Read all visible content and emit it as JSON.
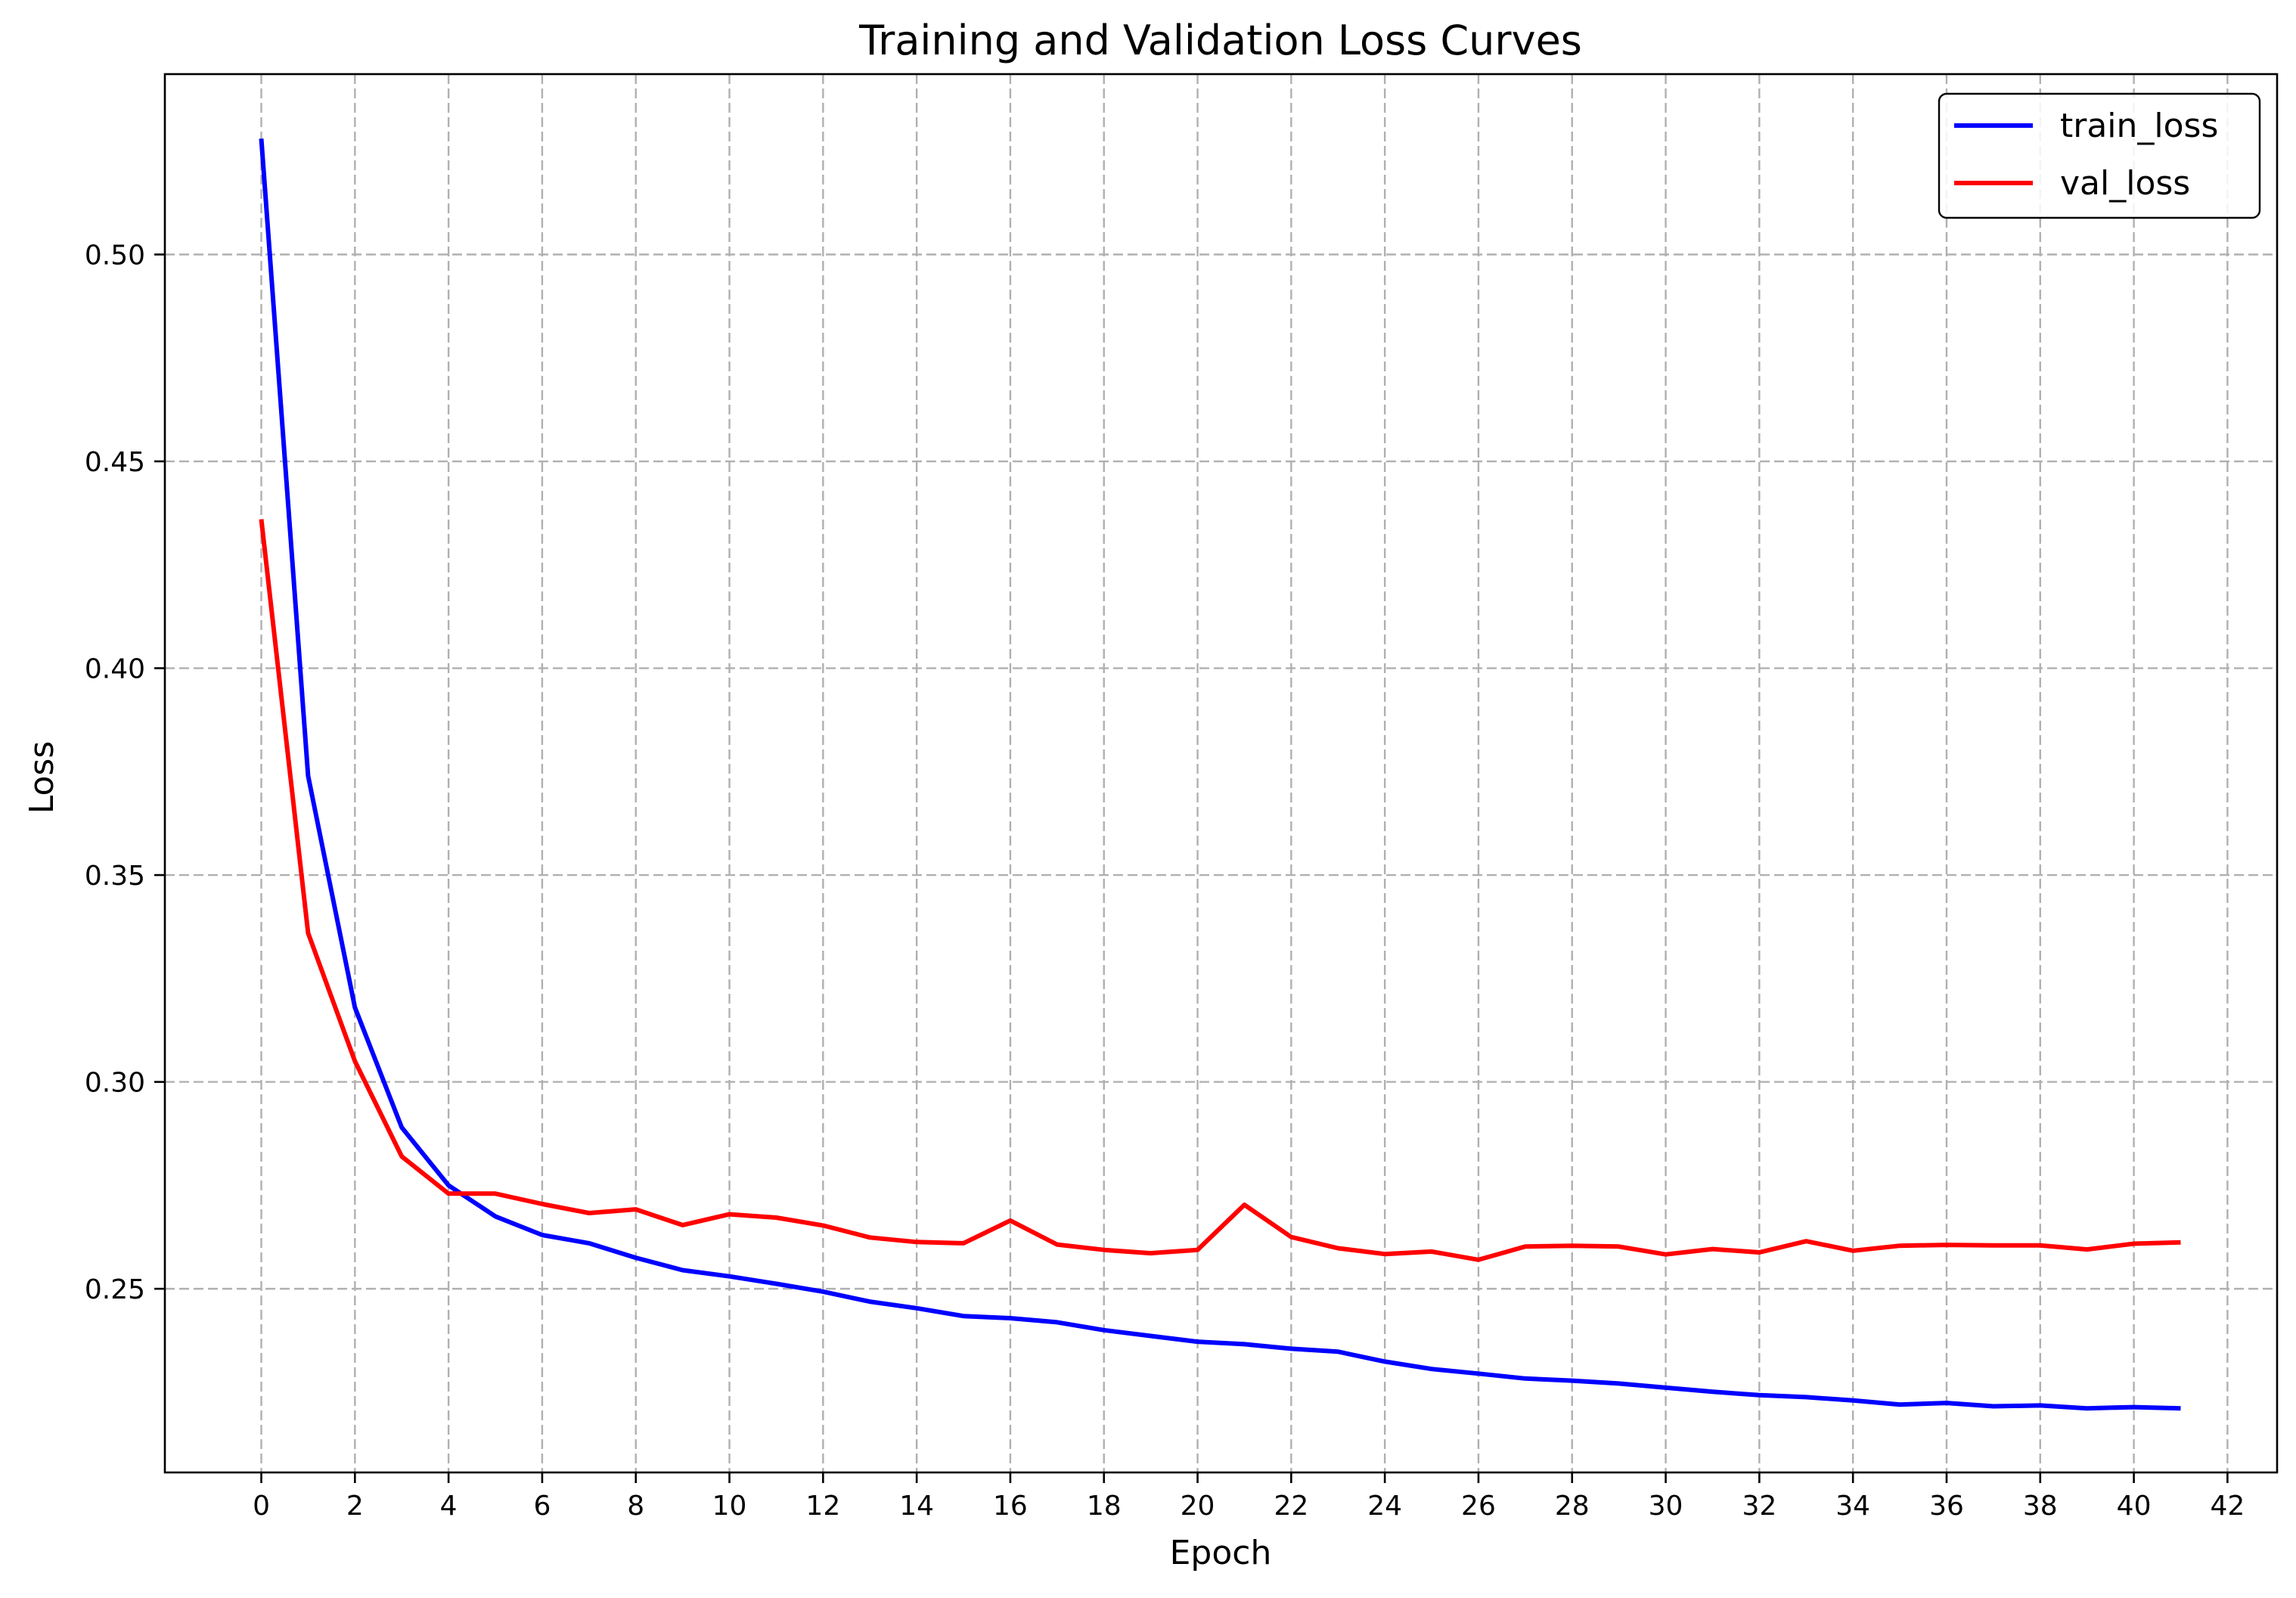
{
  "chart_data": {
    "type": "line",
    "title": "Training and Validation Loss Curves",
    "xlabel": "Epoch",
    "ylabel": "Loss",
    "xlim": [
      -2.06,
      43.06
    ],
    "ylim": [
      0.2056,
      0.5436
    ],
    "xticks": [
      0,
      2,
      4,
      6,
      8,
      10,
      12,
      14,
      16,
      18,
      20,
      22,
      24,
      26,
      28,
      30,
      32,
      34,
      36,
      38,
      40,
      42
    ],
    "yticks": [
      0.25,
      0.3,
      0.35,
      0.4,
      0.45,
      0.5
    ],
    "ytick_labels": [
      "0.25",
      "0.30",
      "0.35",
      "0.40",
      "0.45",
      "0.50"
    ],
    "grid": true,
    "legend_position": "top-right",
    "x": [
      0,
      1,
      2,
      3,
      4,
      5,
      6,
      7,
      8,
      9,
      10,
      11,
      12,
      13,
      14,
      15,
      16,
      17,
      18,
      19,
      20,
      21,
      22,
      23,
      24,
      25,
      26,
      27,
      28,
      29,
      30,
      31,
      32,
      33,
      34,
      35,
      36,
      37,
      38,
      39,
      40,
      41
    ],
    "series": [
      {
        "name": "train_loss",
        "color": "#0000ff",
        "values": [
          0.528,
          0.374,
          0.318,
          0.289,
          0.275,
          0.2675,
          0.263,
          0.261,
          0.2575,
          0.2545,
          0.253,
          0.2512,
          0.2493,
          0.2469,
          0.2453,
          0.2434,
          0.2429,
          0.2419,
          0.24,
          0.2386,
          0.2372,
          0.2366,
          0.2355,
          0.2348,
          0.2324,
          0.2306,
          0.2295,
          0.2283,
          0.2278,
          0.2271,
          0.2261,
          0.2251,
          0.2243,
          0.2238,
          0.223,
          0.222,
          0.2224,
          0.2216,
          0.2218,
          0.2211,
          0.2214,
          0.2211
        ]
      },
      {
        "name": "val_loss",
        "color": "#ff0000",
        "values": [
          0.436,
          0.336,
          0.305,
          0.282,
          0.273,
          0.273,
          0.2705,
          0.2683,
          0.2692,
          0.2654,
          0.268,
          0.2672,
          0.2653,
          0.2624,
          0.2613,
          0.261,
          0.2665,
          0.2607,
          0.2594,
          0.2586,
          0.2594,
          0.2703,
          0.2625,
          0.2598,
          0.2584,
          0.259,
          0.257,
          0.2602,
          0.2604,
          0.2602,
          0.2583,
          0.2596,
          0.2588,
          0.2615,
          0.2592,
          0.2604,
          0.2606,
          0.2605,
          0.2605,
          0.2595,
          0.2609,
          0.2612
        ]
      }
    ]
  }
}
